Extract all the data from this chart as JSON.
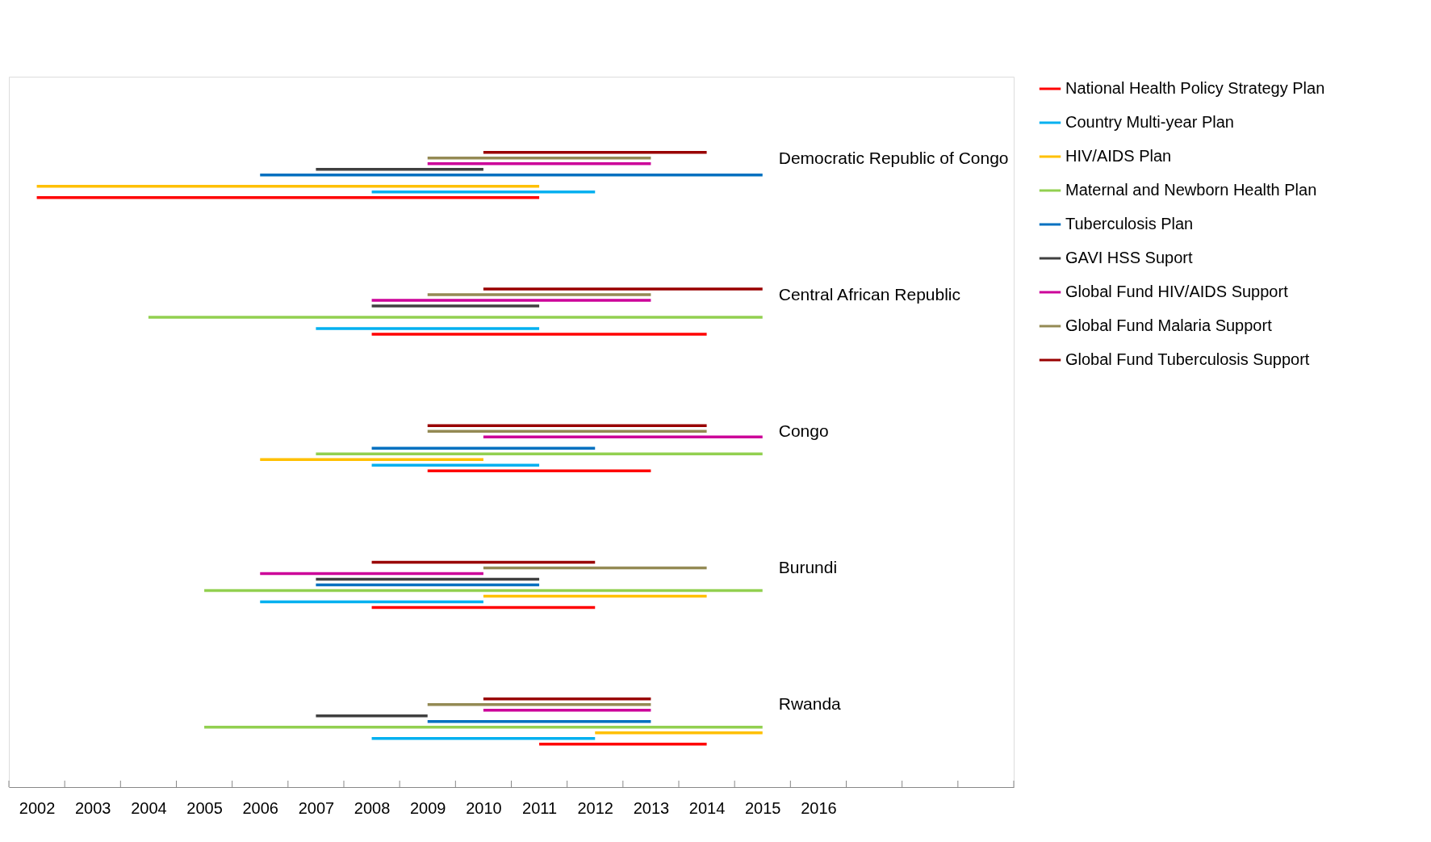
{
  "chart_data": {
    "type": "bar",
    "orientation": "horizontal",
    "legend": "right",
    "grid": false,
    "categories": [
      "Democratic Republic of Congo",
      "Central African Republic",
      "Congo",
      "Burundi",
      "Rwanda"
    ],
    "xlim": [
      2001.5,
      2019.5
    ],
    "xticks": [
      {
        "value": 2001.5,
        "label": null
      },
      {
        "value": 2002.5,
        "label": null
      },
      {
        "value": 2003.5,
        "label": null
      },
      {
        "value": 2004.5,
        "label": null
      },
      {
        "value": 2005.5,
        "label": null
      },
      {
        "value": 2006.5,
        "label": null
      },
      {
        "value": 2007.5,
        "label": null
      },
      {
        "value": 2008.5,
        "label": null
      },
      {
        "value": 2009.5,
        "label": null
      },
      {
        "value": 2010.5,
        "label": null
      },
      {
        "value": 2011.5,
        "label": null
      },
      {
        "value": 2012.5,
        "label": null
      },
      {
        "value": 2013.5,
        "label": null
      },
      {
        "value": 2014.5,
        "label": null
      },
      {
        "value": 2015.5,
        "label": null
      },
      {
        "value": 2016.5,
        "label": null
      },
      {
        "value": 2017.5,
        "label": null
      },
      {
        "value": 2018.5,
        "label": null
      },
      {
        "value": 2019.5,
        "label": null
      },
      2002,
      2003,
      2004,
      2005,
      2006,
      2007,
      2008,
      2009,
      2010,
      2011,
      2012,
      2013,
      2014,
      2015,
      2016
    ],
    "series": [
      {
        "name": "National Health Policy Strategy Plan",
        "color": "#ff0000",
        "base": [
          2002,
          2008,
          2009,
          2008,
          2011
        ],
        "values": [
          9,
          6,
          4,
          4,
          3
        ]
      },
      {
        "name": "Country Multi-year Plan",
        "color": "#00b0f0",
        "base": [
          2008,
          2007,
          2008,
          2006,
          2008
        ],
        "values": [
          4,
          4,
          3,
          4,
          4
        ]
      },
      {
        "name": "HIV/AIDS Plan",
        "color": "#ffc000",
        "base": [
          2002,
          null,
          2006,
          2010,
          2012
        ],
        "values": [
          9,
          null,
          4,
          4,
          3
        ]
      },
      {
        "name": "Maternal and Newborn Health Plan",
        "color": "#92d050",
        "base": [
          null,
          2004,
          2007,
          2005,
          2005
        ],
        "values": [
          null,
          11,
          8,
          10,
          10
        ]
      },
      {
        "name": "Tuberculosis Plan",
        "color": "#0070c0",
        "base": [
          2006,
          null,
          2008,
          2007,
          2009
        ],
        "values": [
          9,
          null,
          4,
          4,
          4
        ]
      },
      {
        "name": "GAVI HSS Suport",
        "color": "#404040",
        "base": [
          2007,
          2008,
          null,
          2007,
          2007
        ],
        "values": [
          3,
          3,
          null,
          4,
          2
        ]
      },
      {
        "name": "Global Fund HIV/AIDS Support",
        "color": "#cc0099",
        "base": [
          2009,
          2008,
          2010,
          2006,
          2010
        ],
        "values": [
          4,
          5,
          5,
          4,
          3
        ]
      },
      {
        "name": "Global Fund Malaria Support",
        "color": "#948a54",
        "base": [
          2009,
          2009,
          2009,
          2010,
          2009
        ],
        "values": [
          4,
          4,
          5,
          4,
          4
        ]
      },
      {
        "name": "Global Fund Tuberculosis Support",
        "color": "#990000",
        "base": [
          2010,
          2010,
          2009,
          2008,
          2010
        ],
        "values": [
          4,
          5,
          5,
          4,
          3
        ]
      }
    ]
  }
}
